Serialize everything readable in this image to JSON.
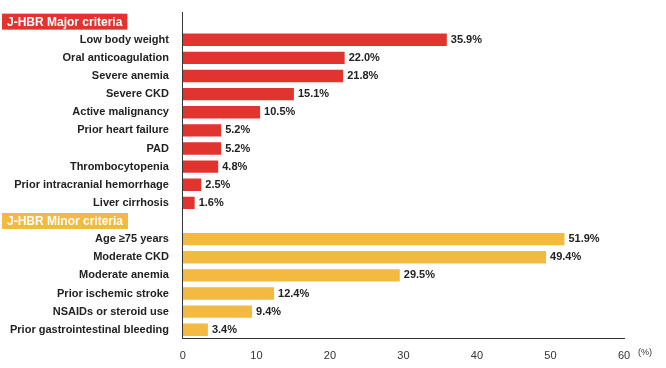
{
  "chart_data": {
    "type": "bar",
    "orientation": "horizontal",
    "categories": [
      null,
      "Low body weight",
      "Oral anticoagulation",
      "Severe anemia",
      "Severe CKD",
      "Active malignancy",
      "Prior heart failure",
      "PAD",
      "Thrombocytopenia",
      "Prior intracranial hemorrhage",
      "Liver cirrhosis",
      null,
      "Age ≥75 years",
      "Moderate CKD",
      "Moderate anemia",
      "Prior ischemic stroke",
      "NSAIDs or steroid use",
      "Prior gastrointestinal bleeding"
    ],
    "series": [
      {
        "name": "J-HBR Major criteria",
        "color": "#e2342f",
        "values": [
          null,
          35.9,
          22.0,
          21.8,
          15.1,
          10.5,
          5.2,
          5.2,
          4.8,
          2.5,
          1.6,
          null,
          null,
          null,
          null,
          null,
          null,
          null
        ],
        "value_labels": [
          null,
          "35.9%",
          "22.0%",
          "21.8%",
          "15.1%",
          "10.5%",
          "5.2%",
          "5.2%",
          "4.8%",
          "2.5%",
          "1.6%",
          null,
          null,
          null,
          null,
          null,
          null,
          null
        ]
      },
      {
        "name": "J-HBR Minor criteria",
        "color": "#f4b940",
        "values": [
          null,
          null,
          null,
          null,
          null,
          null,
          null,
          null,
          null,
          null,
          null,
          null,
          51.9,
          49.4,
          29.5,
          12.4,
          9.4,
          3.4
        ],
        "value_labels": [
          null,
          null,
          null,
          null,
          null,
          null,
          null,
          null,
          null,
          null,
          null,
          null,
          "51.9%",
          "49.4%",
          "29.5%",
          "12.4%",
          "9.4%",
          "3.4%"
        ]
      }
    ],
    "x_label": "(%)",
    "xlim": [
      0,
      60
    ],
    "xticks": [
      0,
      10,
      20,
      30,
      40,
      50,
      60
    ],
    "grid": false,
    "data_labels": true
  }
}
